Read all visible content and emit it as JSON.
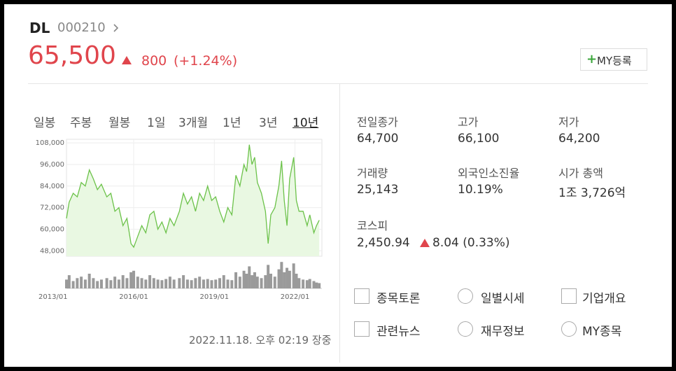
{
  "header": {
    "name": "DL",
    "code": "000210",
    "price": "65,500",
    "change": "800",
    "change_pct": "(+1.24%)",
    "my_button": "MY등록"
  },
  "tabs": [
    "일봉",
    "주봉",
    "월봉",
    "1일",
    "3개월",
    "1년",
    "3년",
    "10년"
  ],
  "active_tab": 7,
  "chart_data": {
    "type": "line",
    "x": [
      2013.5,
      2013.6,
      2013.75,
      2013.9,
      2014.05,
      2014.2,
      2014.35,
      2014.5,
      2014.65,
      2014.8,
      2015.0,
      2015.15,
      2015.3,
      2015.45,
      2015.6,
      2015.75,
      2015.9,
      2016.0,
      2016.15,
      2016.3,
      2016.45,
      2016.6,
      2016.75,
      2016.9,
      2017.05,
      2017.2,
      2017.35,
      2017.5,
      2017.7,
      2017.85,
      2018.0,
      2018.15,
      2018.3,
      2018.45,
      2018.6,
      2018.75,
      2018.9,
      2019.05,
      2019.2,
      2019.35,
      2019.5,
      2019.65,
      2019.8,
      2019.95,
      2020.1,
      2020.2,
      2020.3,
      2020.4,
      2020.5,
      2020.6,
      2020.75,
      2020.9,
      2021.0,
      2021.1,
      2021.25,
      2021.4,
      2021.5,
      2021.6,
      2021.7,
      2021.8,
      2021.95,
      2022.05,
      2022.15,
      2022.3,
      2022.45,
      2022.55,
      2022.7,
      2022.8,
      2022.9
    ],
    "values": [
      66000,
      75000,
      80000,
      78000,
      86000,
      84000,
      93000,
      88000,
      82000,
      85000,
      78000,
      80000,
      70000,
      72000,
      62000,
      66000,
      52000,
      50000,
      56000,
      62000,
      58000,
      68000,
      70000,
      60000,
      64000,
      58000,
      66000,
      62000,
      70000,
      80000,
      74000,
      78000,
      70000,
      80000,
      76000,
      84000,
      76000,
      78000,
      70000,
      64000,
      72000,
      68000,
      90000,
      84000,
      96000,
      92000,
      107000,
      96000,
      100000,
      86000,
      80000,
      70000,
      52000,
      68000,
      72000,
      84000,
      98000,
      76000,
      62000,
      88000,
      100000,
      76000,
      70000,
      70000,
      62000,
      68000,
      58000,
      62000,
      65000
    ],
    "volume": [
      30,
      45,
      25,
      35,
      40,
      30,
      50,
      35,
      25,
      30,
      35,
      28,
      40,
      30,
      45,
      35,
      55,
      60,
      40,
      35,
      30,
      45,
      35,
      30,
      28,
      32,
      40,
      30,
      35,
      45,
      30,
      28,
      35,
      40,
      30,
      32,
      28,
      30,
      35,
      45,
      30,
      28,
      55,
      40,
      60,
      50,
      75,
      45,
      55,
      40,
      35,
      45,
      80,
      50,
      40,
      65,
      90,
      55,
      70,
      60,
      85,
      50,
      35,
      30,
      28,
      32,
      25,
      20,
      18
    ],
    "volume_lim": [
      0,
      100
    ],
    "color": "#6cc24a",
    "fill": "#e9f8e2",
    "volume_color": "#9a9a9a",
    "xlim": [
      2013.5,
      2023.0
    ],
    "xticks": [
      {
        "value": 2013,
        "label": "2013/01"
      },
      {
        "value": 2016,
        "label": "2016/01"
      },
      {
        "value": 2019,
        "label": "2019/01"
      },
      {
        "value": 2022,
        "label": "2022/01"
      }
    ],
    "ylim": [
      45000,
      110000
    ],
    "yticks": [
      {
        "value": 48000,
        "label": "48,000"
      },
      {
        "value": 60000,
        "label": "60,000"
      },
      {
        "value": 72000,
        "label": "72,000"
      },
      {
        "value": 84000,
        "label": "84,000"
      },
      {
        "value": 96000,
        "label": "96,000"
      },
      {
        "value": 108000,
        "label": "108,000"
      }
    ],
    "grid": true
  },
  "timestamp": "2022.11.18. 오후 02:19 장중",
  "stats": [
    {
      "label": "전일종가",
      "value": "64,700"
    },
    {
      "label": "고가",
      "value": "66,100"
    },
    {
      "label": "저가",
      "value": "64,200"
    },
    {
      "label": "거래량",
      "value": "25,143"
    },
    {
      "label": "외국인소진율",
      "value": "10.19%"
    },
    {
      "label": "시가 총액",
      "value": "1조 3,726억"
    }
  ],
  "kospi": {
    "label": "코스피",
    "value": "2,450.94",
    "change": "8.04 (0.33%)"
  },
  "links": [
    "종목토론",
    "일별시세",
    "기업개요",
    "관련뉴스",
    "재무정보",
    "MY종목"
  ]
}
